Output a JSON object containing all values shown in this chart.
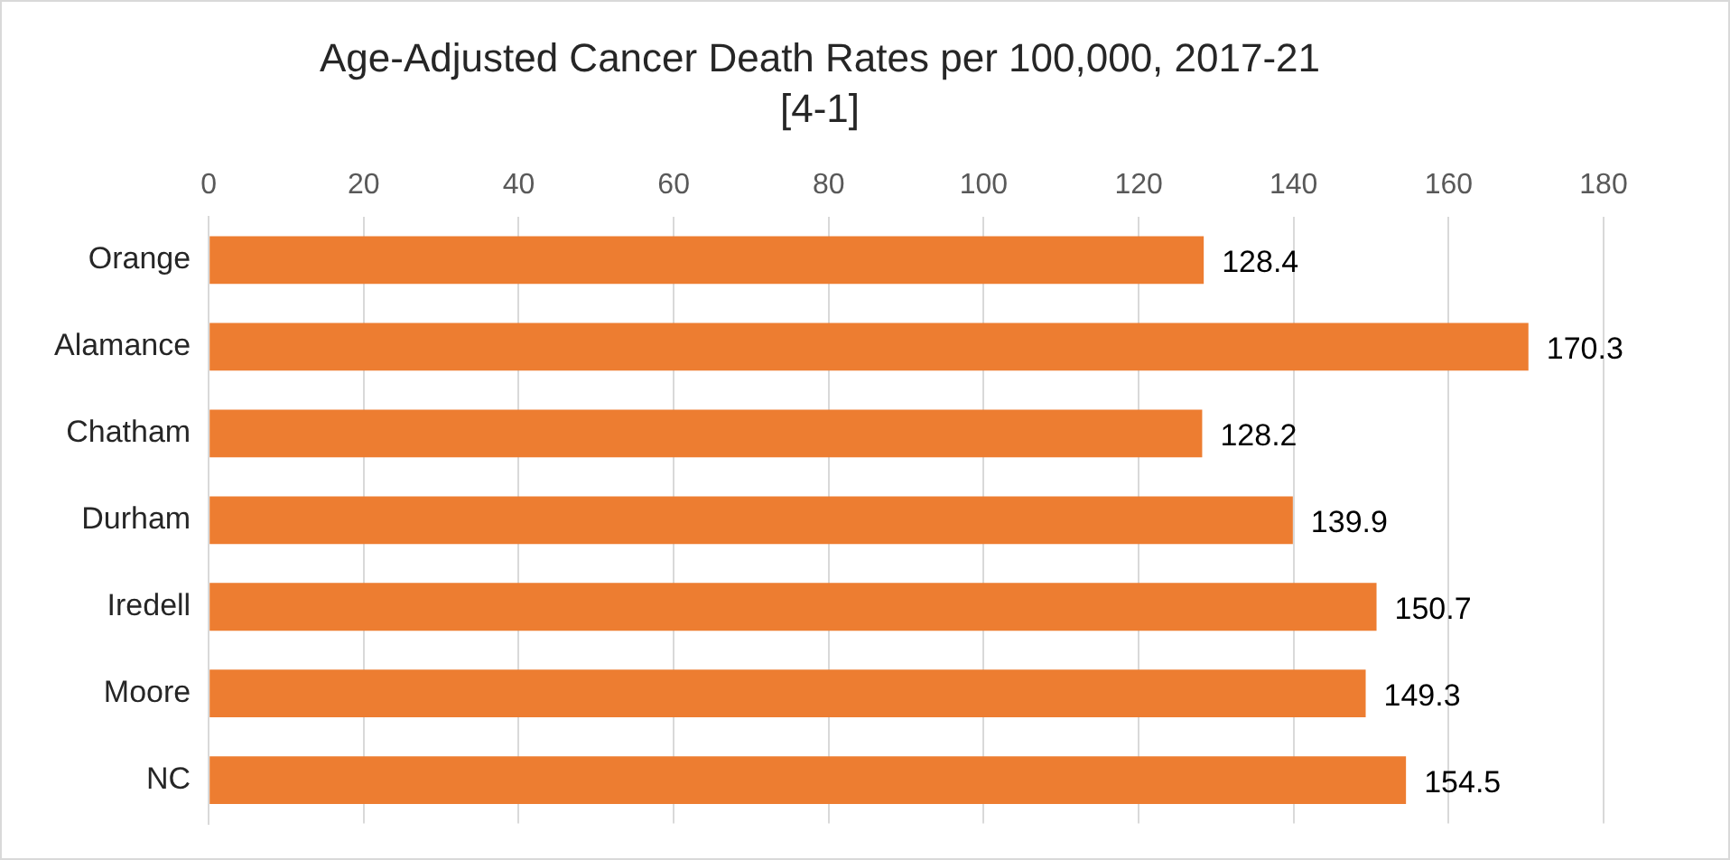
{
  "chart_data": {
    "type": "bar",
    "orientation": "horizontal",
    "title": "Age-Adjusted Cancer Death Rates per 100,000, 2017-21",
    "subtitle": "[4-1]",
    "categories": [
      "Orange",
      "Alamance",
      "Chatham",
      "Durham",
      "Iredell",
      "Moore",
      "NC"
    ],
    "values": [
      128.4,
      170.3,
      128.2,
      139.9,
      150.7,
      149.3,
      154.5
    ],
    "color": "#ed7d31",
    "xlim": [
      0,
      180
    ],
    "xticks": [
      0,
      20,
      40,
      60,
      80,
      100,
      120,
      140,
      160,
      180
    ],
    "grid": "x",
    "data_labels": true
  }
}
